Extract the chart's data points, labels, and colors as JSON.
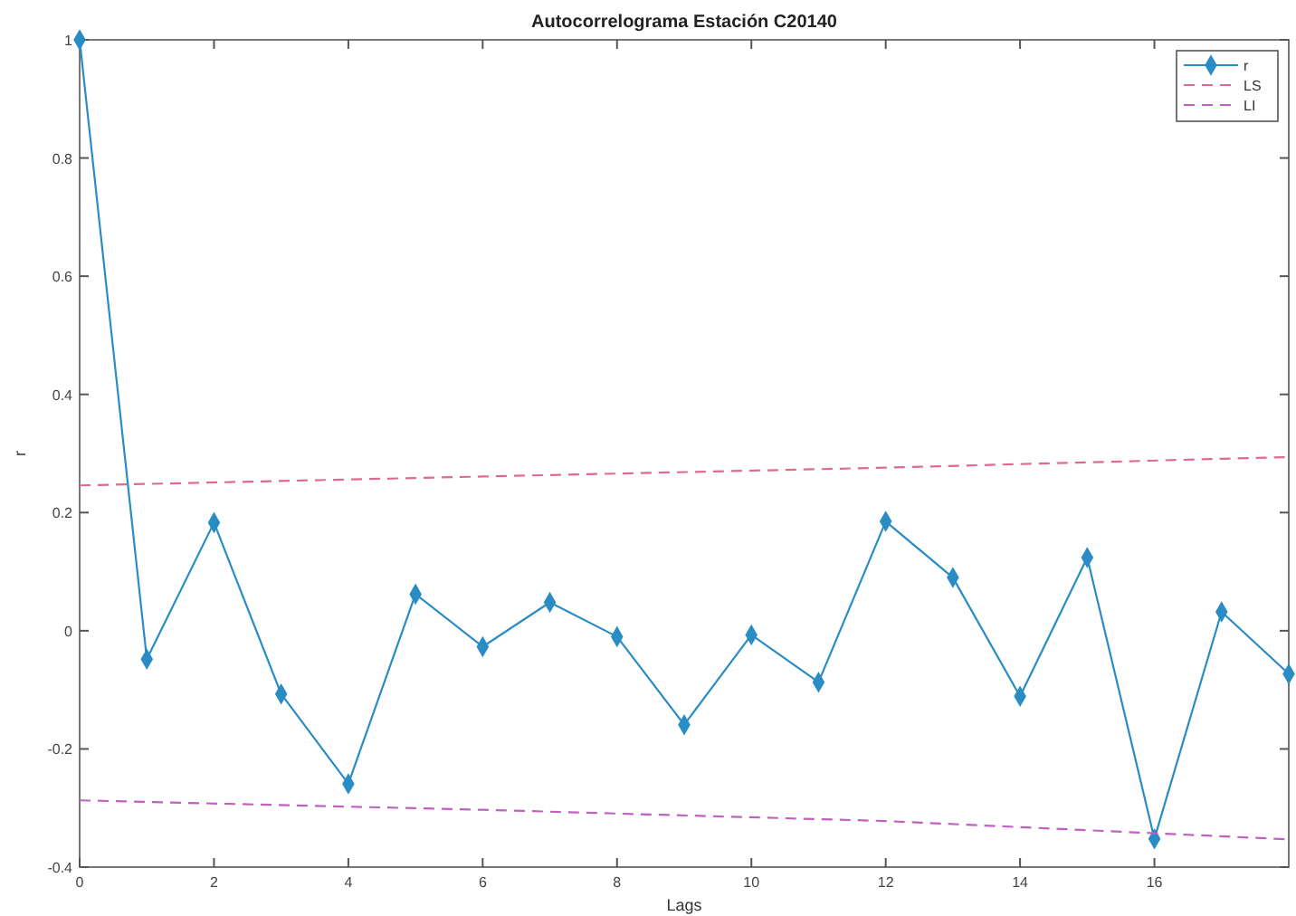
{
  "chart_data": {
    "type": "line",
    "title": "Autocorrelograma Estación C20140",
    "xlabel": "Lags",
    "ylabel": "r",
    "x": [
      0,
      1,
      2,
      3,
      4,
      5,
      6,
      7,
      8,
      9,
      10,
      11,
      12,
      13,
      14,
      15,
      16,
      17,
      18
    ],
    "series": [
      {
        "name": "r",
        "color": "#2a8cc4",
        "marker": "diamond",
        "line_style": "solid",
        "values": [
          1,
          -0.048,
          0.183,
          -0.107,
          -0.259,
          0.062,
          -0.027,
          0.048,
          -0.01,
          -0.159,
          -0.007,
          -0.087,
          0.185,
          0.09,
          -0.111,
          0.124,
          -0.352,
          0.032,
          -0.073
        ]
      },
      {
        "name": "LS",
        "color": "#e06a8a",
        "marker": "none",
        "line_style": "dashed",
        "x": [
          0,
          6,
          12,
          18
        ],
        "values": [
          0.246,
          0.261,
          0.276,
          0.294
        ]
      },
      {
        "name": "LI",
        "color": "#c060c0",
        "marker": "none",
        "line_style": "dashed",
        "x": [
          0,
          6,
          12,
          18
        ],
        "values": [
          -0.287,
          -0.303,
          -0.322,
          -0.353
        ]
      }
    ],
    "xlim": [
      0,
      18
    ],
    "xticks": [
      0,
      2,
      4,
      6,
      8,
      10,
      12,
      14,
      16
    ],
    "ylim": [
      -0.4,
      1
    ],
    "yticks": [
      -0.4,
      -0.2,
      0,
      0.2,
      0.4,
      0.6,
      0.8,
      1
    ],
    "grid": false,
    "legend": "top right"
  }
}
